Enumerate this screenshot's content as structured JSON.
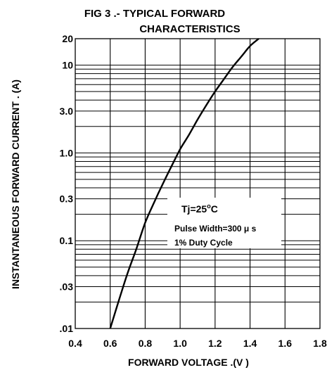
{
  "chart_data": {
    "type": "line",
    "title": "FIG 3 .- TYPICAL  FORWARD",
    "subtitle": "CHARACTERISTICS",
    "xlabel": "FORWARD VOLTAGE .(V )",
    "ylabel": "INSTANTANEOUS FORWARD CURRENT . (A)",
    "x_scale": "linear",
    "y_scale": "log",
    "xlim": [
      0.4,
      1.8
    ],
    "ylim": [
      0.01,
      20
    ],
    "x_ticks": [
      "0.4",
      "0.6",
      "0.8",
      "1.0",
      "1.2",
      "1.4",
      "1.6",
      "1.8"
    ],
    "x_tick_values": [
      0.4,
      0.6,
      0.8,
      1.0,
      1.2,
      1.4,
      1.6,
      1.8
    ],
    "y_ticks": [
      "20",
      "10",
      "3.0",
      "1.0",
      "0.3",
      "0.1",
      ".03",
      ".01"
    ],
    "y_tick_values": [
      20,
      10,
      3,
      1,
      0.3,
      0.1,
      0.03,
      0.01
    ],
    "grid": true,
    "legend": "none",
    "annotation": {
      "line1_prefix": "Tj=25",
      "line1_sup": "o",
      "line1_suffix": "C",
      "line2": "Pulse Width=300 μ s",
      "line3": "1% Duty  Cycle"
    },
    "series": [
      {
        "x": [
          0.6,
          0.65,
          0.7,
          0.75,
          0.8,
          0.85,
          0.9,
          0.95,
          1.0,
          1.05,
          1.1,
          1.15,
          1.2,
          1.25,
          1.3,
          1.35,
          1.4,
          1.45
        ],
        "values": [
          0.01,
          0.021,
          0.043,
          0.081,
          0.16,
          0.27,
          0.44,
          0.7,
          1.1,
          1.6,
          2.4,
          3.5,
          5.0,
          6.9,
          9.5,
          12.5,
          16.5,
          20
        ]
      }
    ],
    "colors": {
      "line": "#000000",
      "grid": "#000000"
    }
  }
}
